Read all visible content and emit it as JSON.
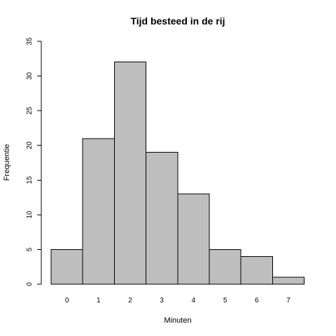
{
  "chart_data": {
    "type": "bar",
    "title": "Tijd besteed in de rij",
    "xlabel": "Minuten",
    "ylabel": "Frequentie",
    "categories": [
      "0",
      "1",
      "2",
      "3",
      "4",
      "5",
      "6",
      "7"
    ],
    "values": [
      5,
      21,
      32,
      19,
      13,
      5,
      4,
      1
    ],
    "ylim": [
      0,
      35
    ],
    "yticks": [
      0,
      5,
      10,
      15,
      20,
      25,
      30,
      35
    ],
    "grid": false,
    "legend": "none",
    "bar_color": "#bebebe",
    "border_color": "#000000"
  }
}
